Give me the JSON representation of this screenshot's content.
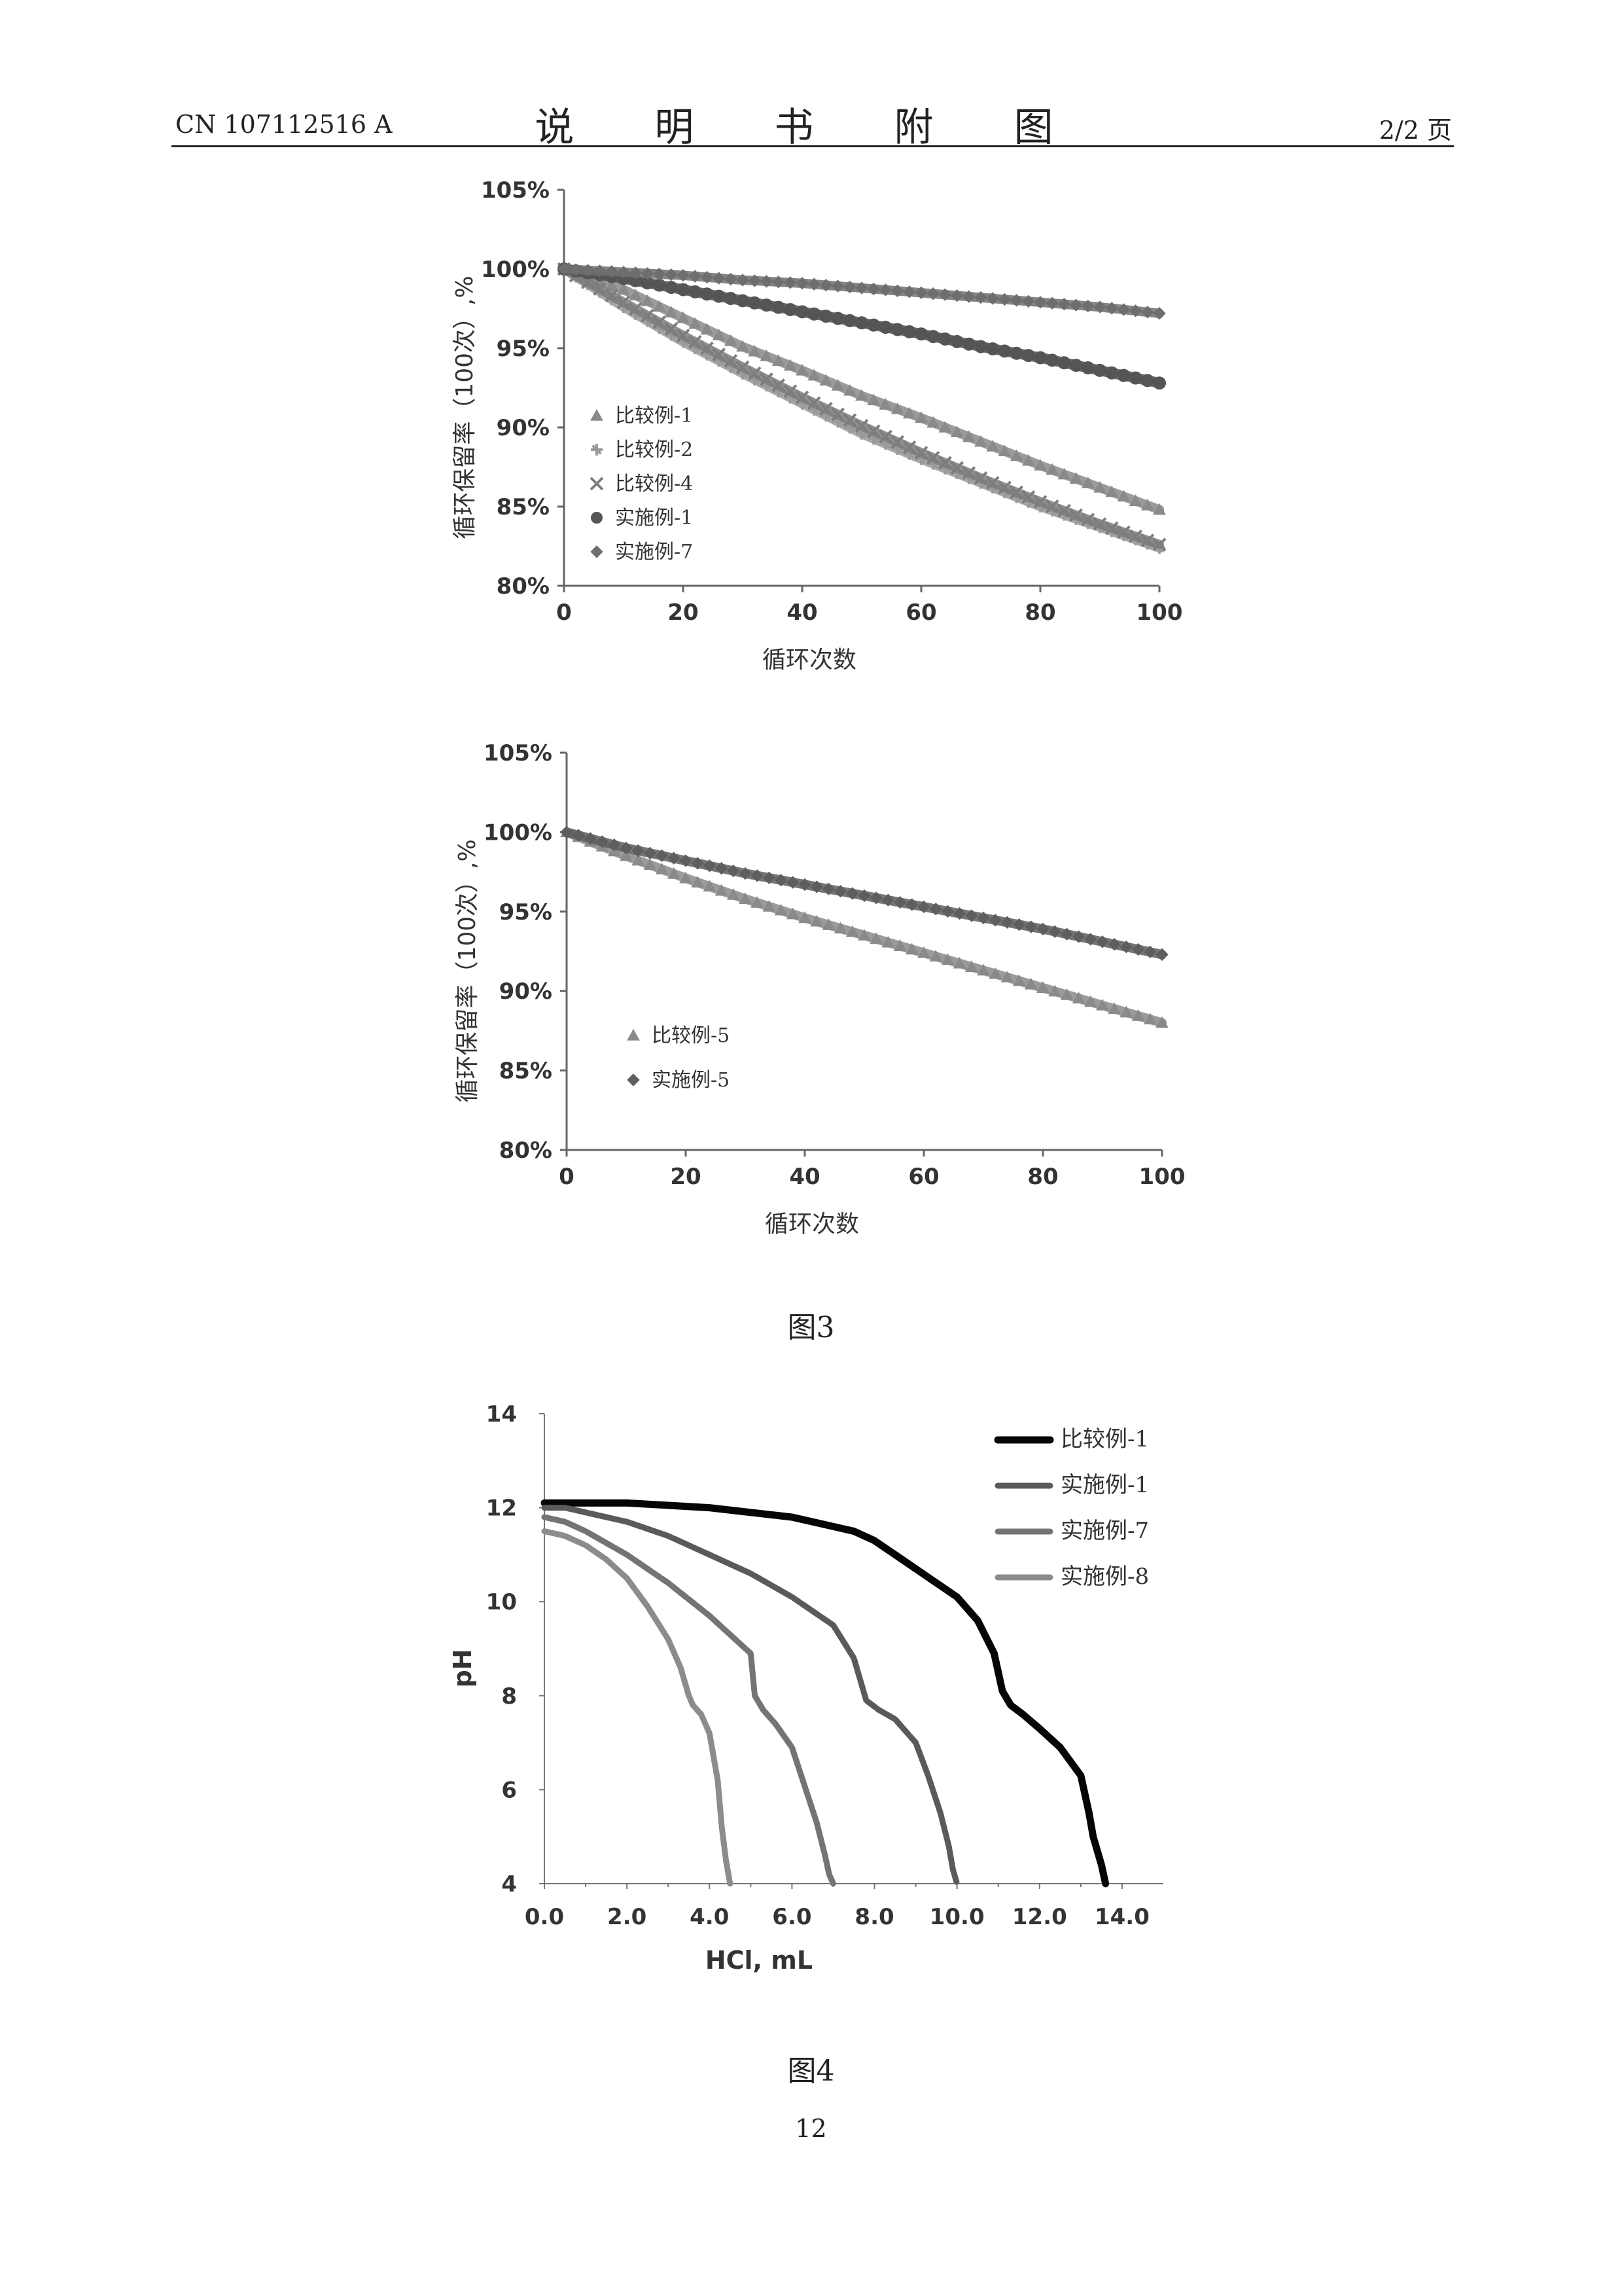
{
  "header": {
    "doc_number": "CN 107112516 A",
    "title": "说 明 书 附 图",
    "page_of": "2/2 页"
  },
  "captions": {
    "fig3": "图3",
    "fig4": "图4"
  },
  "page_number": "12",
  "chart_data": [
    {
      "type": "scatter",
      "id": "fig3a",
      "xlabel": "循环次数",
      "ylabel": "循环保留率（100次）,%",
      "xlim": [
        0,
        100
      ],
      "ylim": [
        80,
        105
      ],
      "x_ticks": [
        "0",
        "20",
        "40",
        "60",
        "80",
        "100"
      ],
      "y_ticks": [
        "80%",
        "85%",
        "90%",
        "95%",
        "100%",
        "105%"
      ],
      "legend_position": "left-lower",
      "series": [
        {
          "name": "比较例-1",
          "marker": "triangle",
          "x": [
            0,
            10,
            20,
            30,
            40,
            50,
            60,
            70,
            80,
            90,
            100
          ],
          "y": [
            100,
            98.7,
            96.9,
            95.1,
            93.6,
            92.0,
            90.6,
            89.1,
            87.6,
            86.2,
            84.8
          ]
        },
        {
          "name": "比较例-2",
          "marker": "star",
          "x": [
            0,
            10,
            20,
            30,
            40,
            50,
            60,
            70,
            80,
            90,
            100
          ],
          "y": [
            100,
            97.6,
            95.4,
            93.4,
            91.5,
            89.6,
            88.0,
            86.5,
            85.0,
            83.7,
            82.4
          ]
        },
        {
          "name": "比较例-4",
          "marker": "x",
          "x": [
            0,
            10,
            20,
            30,
            40,
            50,
            60,
            70,
            80,
            90,
            100
          ],
          "y": [
            100,
            97.9,
            95.8,
            93.8,
            91.9,
            90.1,
            88.4,
            86.8,
            85.3,
            83.9,
            82.6
          ]
        },
        {
          "name": "实施例-1",
          "marker": "circle",
          "x": [
            0,
            10,
            20,
            30,
            40,
            50,
            60,
            70,
            80,
            90,
            100
          ],
          "y": [
            100,
            99.4,
            98.7,
            98.0,
            97.3,
            96.6,
            95.9,
            95.1,
            94.4,
            93.6,
            92.8
          ]
        },
        {
          "name": "实施例-7",
          "marker": "diamond",
          "x": [
            0,
            10,
            20,
            30,
            40,
            50,
            60,
            70,
            80,
            90,
            100
          ],
          "y": [
            100,
            99.8,
            99.6,
            99.3,
            99.1,
            98.8,
            98.5,
            98.2,
            97.9,
            97.6,
            97.2
          ]
        }
      ]
    },
    {
      "type": "scatter",
      "id": "fig3b",
      "xlabel": "循环次数",
      "ylabel": "循环保留率（100次）,%",
      "xlim": [
        0,
        100
      ],
      "ylim": [
        80,
        105
      ],
      "x_ticks": [
        "0",
        "20",
        "40",
        "60",
        "80",
        "100"
      ],
      "y_ticks": [
        "80%",
        "85%",
        "90%",
        "95%",
        "100%",
        "105%"
      ],
      "legend_position": "left-lower",
      "series": [
        {
          "name": "比较例-5",
          "marker": "triangle",
          "x": [
            0,
            10,
            20,
            30,
            40,
            50,
            60,
            70,
            80,
            90,
            100
          ],
          "y": [
            100,
            98.5,
            97.1,
            95.8,
            94.6,
            93.5,
            92.4,
            91.3,
            90.2,
            89.1,
            88.0
          ]
        },
        {
          "name": "实施例-5",
          "marker": "diamond",
          "x": [
            0,
            10,
            20,
            30,
            40,
            50,
            60,
            70,
            80,
            90,
            100
          ],
          "y": [
            100,
            99.0,
            98.2,
            97.4,
            96.7,
            96.0,
            95.3,
            94.6,
            93.9,
            93.1,
            92.3
          ]
        }
      ]
    },
    {
      "type": "line",
      "id": "fig4",
      "xlabel": "HCl, mL",
      "ylabel": "pH",
      "xlim": [
        0,
        15
      ],
      "ylim": [
        4,
        14
      ],
      "x_ticks": [
        "0.0",
        "2.0",
        "4.0",
        "6.0",
        "8.0",
        "10.0",
        "12.0",
        "14.0"
      ],
      "y_ticks": [
        "4",
        "6",
        "8",
        "10",
        "12",
        "14"
      ],
      "legend_position": "top-right",
      "series": [
        {
          "name": "比较例-1",
          "color": "#050505",
          "width": 11,
          "x": [
            0,
            1,
            2,
            3,
            4,
            5,
            6,
            6.5,
            7,
            7.5,
            8,
            8.5,
            9,
            9.5,
            10,
            10.5,
            10.9,
            11.1,
            11.3,
            11.6,
            12,
            12.5,
            13,
            13.2,
            13.3,
            13.5,
            13.6
          ],
          "y": [
            12.1,
            12.1,
            12.1,
            12.05,
            12.0,
            11.9,
            11.8,
            11.7,
            11.6,
            11.5,
            11.3,
            11.0,
            10.7,
            10.4,
            10.1,
            9.6,
            8.9,
            8.1,
            7.8,
            7.6,
            7.3,
            6.9,
            6.3,
            5.5,
            5.0,
            4.4,
            4.0
          ]
        },
        {
          "name": "实施例-1",
          "color": "#5a5a5a",
          "width": 9,
          "x": [
            0,
            0.5,
            1,
            2,
            3,
            4,
            5,
            6,
            7,
            7.5,
            7.8,
            8.1,
            8.5,
            9,
            9.3,
            9.6,
            9.8,
            9.9,
            10.0
          ],
          "y": [
            12.0,
            12.0,
            11.9,
            11.7,
            11.4,
            11.0,
            10.6,
            10.1,
            9.5,
            8.8,
            7.9,
            7.7,
            7.5,
            7.0,
            6.3,
            5.5,
            4.8,
            4.3,
            4.0
          ]
        },
        {
          "name": "实施例-7",
          "color": "#747474",
          "width": 9,
          "x": [
            0,
            0.5,
            1,
            2,
            3,
            4,
            5,
            5.1,
            5.3,
            5.6,
            6,
            6.3,
            6.6,
            6.8,
            6.9,
            7.0
          ],
          "y": [
            11.8,
            11.7,
            11.5,
            11.0,
            10.4,
            9.7,
            8.9,
            8.0,
            7.7,
            7.4,
            6.9,
            6.1,
            5.3,
            4.6,
            4.2,
            4.0
          ]
        },
        {
          "name": "实施例-8",
          "color": "#8c8c8c",
          "width": 9,
          "x": [
            0,
            0.5,
            1,
            1.5,
            2,
            2.5,
            3,
            3.3,
            3.5,
            3.6,
            3.8,
            4.0,
            4.2,
            4.3,
            4.4,
            4.5
          ],
          "y": [
            11.5,
            11.4,
            11.2,
            10.9,
            10.5,
            9.9,
            9.2,
            8.6,
            8.0,
            7.8,
            7.6,
            7.2,
            6.2,
            5.2,
            4.5,
            4.0
          ]
        }
      ]
    }
  ]
}
